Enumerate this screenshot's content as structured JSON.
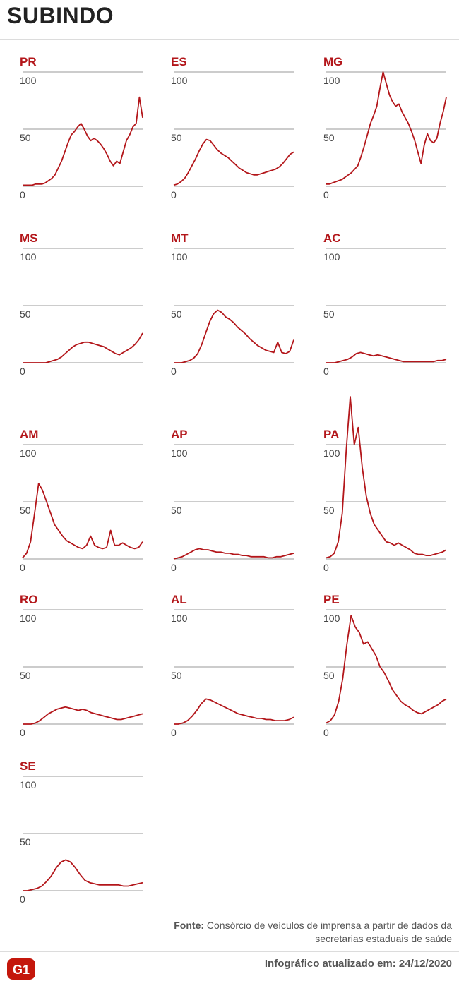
{
  "header": {
    "title": "SUBINDO"
  },
  "footer": {
    "source_label": "Fonte:",
    "source_text": "Consórcio de veículos de imprensa a partir de dados da secretarias estaduais de saúde",
    "updated_label": "Infográfico atualizado em:",
    "updated_date": "24/12/2020",
    "logo_text": "G1"
  },
  "colors": {
    "line": "#b3161a",
    "label": "#b3161a",
    "grid": "#9a9a9a"
  },
  "chart_data": [
    {
      "type": "line",
      "title": "PR",
      "yticks": [
        "100",
        "50",
        "0"
      ],
      "ylim": [
        0,
        100
      ],
      "values": [
        1,
        1,
        1,
        1,
        2,
        2,
        2,
        3,
        5,
        7,
        10,
        16,
        22,
        30,
        38,
        45,
        48,
        52,
        55,
        50,
        44,
        40,
        42,
        40,
        37,
        33,
        28,
        22,
        18,
        22,
        20,
        30,
        40,
        45,
        52,
        55,
        78,
        60
      ]
    },
    {
      "type": "line",
      "title": "ES",
      "yticks": [
        "100",
        "50",
        "0"
      ],
      "ylim": [
        0,
        100
      ],
      "values": [
        1,
        2,
        4,
        7,
        12,
        18,
        24,
        31,
        37,
        41,
        40,
        36,
        32,
        29,
        27,
        25,
        22,
        19,
        16,
        14,
        12,
        11,
        10,
        10,
        11,
        12,
        13,
        14,
        15,
        17,
        20,
        24,
        28,
        30
      ]
    },
    {
      "type": "line",
      "title": "MG",
      "yticks": [
        "100",
        "50",
        "0"
      ],
      "ylim": [
        0,
        100
      ],
      "values": [
        2,
        2,
        3,
        4,
        5,
        6,
        8,
        10,
        12,
        15,
        18,
        26,
        35,
        45,
        55,
        62,
        70,
        86,
        100,
        90,
        80,
        74,
        70,
        72,
        65,
        60,
        55,
        48,
        40,
        30,
        20,
        36,
        46,
        40,
        38,
        42,
        55,
        65,
        78
      ]
    },
    {
      "type": "line",
      "title": "MS",
      "yticks": [
        "100",
        "50",
        "0"
      ],
      "ylim": [
        0,
        100
      ],
      "values": [
        0,
        0,
        0,
        0,
        0,
        0,
        0,
        1,
        2,
        3,
        5,
        8,
        11,
        14,
        16,
        17,
        18,
        18,
        17,
        16,
        15,
        14,
        12,
        10,
        8,
        7,
        9,
        11,
        13,
        16,
        20,
        26
      ]
    },
    {
      "type": "line",
      "title": "MT",
      "yticks": [
        "100",
        "50",
        "0"
      ],
      "ylim": [
        0,
        100
      ],
      "values": [
        0,
        0,
        0,
        1,
        2,
        4,
        8,
        16,
        26,
        36,
        43,
        46,
        44,
        40,
        38,
        35,
        31,
        28,
        25,
        21,
        18,
        15,
        13,
        11,
        10,
        9,
        18,
        9,
        8,
        10,
        20
      ]
    },
    {
      "type": "line",
      "title": "AC",
      "yticks": [
        "100",
        "50",
        "0"
      ],
      "ylim": [
        0,
        100
      ],
      "values": [
        0,
        0,
        0,
        1,
        2,
        3,
        5,
        8,
        9,
        8,
        7,
        6,
        7,
        6,
        5,
        4,
        3,
        2,
        1,
        1,
        1,
        1,
        1,
        1,
        1,
        1,
        2,
        2,
        3
      ]
    },
    {
      "type": "line",
      "title": "AM",
      "yticks": [
        "100",
        "50",
        "0"
      ],
      "ylim": [
        0,
        100
      ],
      "values": [
        1,
        5,
        15,
        40,
        66,
        60,
        50,
        40,
        30,
        25,
        20,
        16,
        14,
        12,
        10,
        9,
        12,
        20,
        12,
        10,
        9,
        10,
        25,
        12,
        12,
        14,
        12,
        10,
        9,
        10,
        15
      ]
    },
    {
      "type": "line",
      "title": "AP",
      "yticks": [
        "100",
        "50",
        "0"
      ],
      "ylim": [
        0,
        100
      ],
      "values": [
        0,
        1,
        2,
        4,
        6,
        8,
        9,
        8,
        8,
        7,
        6,
        6,
        5,
        5,
        4,
        4,
        3,
        3,
        2,
        2,
        2,
        2,
        1,
        1,
        2,
        2,
        3,
        4,
        5
      ]
    },
    {
      "type": "line",
      "title": "PA",
      "yticks": [
        "100",
        "50",
        "0"
      ],
      "ylim": [
        0,
        100
      ],
      "values": [
        1,
        2,
        5,
        15,
        40,
        95,
        142,
        100,
        115,
        80,
        55,
        40,
        30,
        25,
        20,
        15,
        14,
        12,
        14,
        12,
        10,
        8,
        5,
        4,
        4,
        3,
        3,
        4,
        5,
        6,
        8
      ]
    },
    {
      "type": "line",
      "title": "RO",
      "yticks": [
        "100",
        "50",
        "0"
      ],
      "ylim": [
        0,
        100
      ],
      "values": [
        0,
        0,
        0,
        1,
        3,
        6,
        9,
        11,
        13,
        14,
        15,
        14,
        13,
        12,
        13,
        12,
        10,
        9,
        8,
        7,
        6,
        5,
        4,
        4,
        5,
        6,
        7,
        8,
        9
      ]
    },
    {
      "type": "line",
      "title": "AL",
      "yticks": [
        "100",
        "50",
        "0"
      ],
      "ylim": [
        0,
        100
      ],
      "values": [
        0,
        0,
        1,
        3,
        7,
        12,
        18,
        22,
        21,
        19,
        17,
        15,
        13,
        11,
        9,
        8,
        7,
        6,
        5,
        5,
        4,
        4,
        3,
        3,
        3,
        4,
        6
      ]
    },
    {
      "type": "line",
      "title": "PE",
      "yticks": [
        "100",
        "50",
        "0"
      ],
      "ylim": [
        0,
        100
      ],
      "values": [
        1,
        3,
        8,
        20,
        40,
        70,
        95,
        85,
        80,
        70,
        72,
        66,
        60,
        50,
        45,
        38,
        30,
        25,
        20,
        17,
        15,
        12,
        10,
        9,
        11,
        13,
        15,
        17,
        20,
        22
      ]
    },
    {
      "type": "line",
      "title": "SE",
      "yticks": [
        "100",
        "50",
        "0"
      ],
      "ylim": [
        0,
        100
      ],
      "values": [
        0,
        0,
        1,
        2,
        4,
        8,
        13,
        20,
        25,
        27,
        25,
        20,
        14,
        9,
        7,
        6,
        5,
        5,
        5,
        5,
        5,
        4,
        4,
        5,
        6,
        7
      ]
    }
  ]
}
